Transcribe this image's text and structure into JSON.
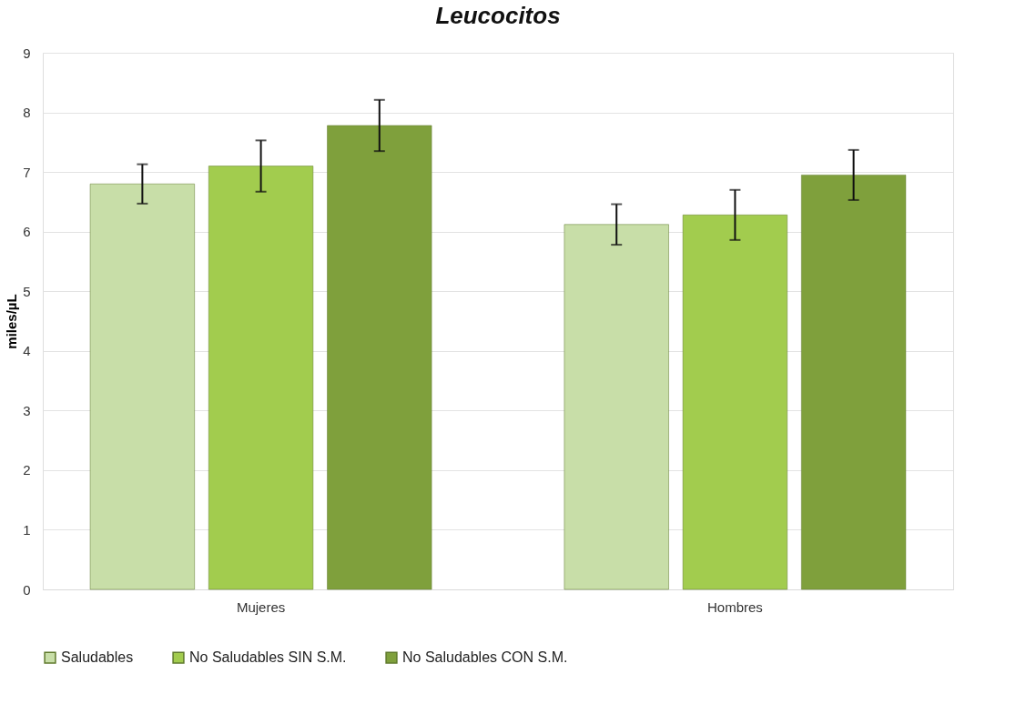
{
  "chart_data": {
    "type": "bar",
    "title": "Leucocitos",
    "ylabel": "miles/µL",
    "categories": [
      "Mujeres",
      "Hombres"
    ],
    "series": [
      {
        "name": "Saludables",
        "color": "#c8dea8",
        "values": [
          6.8,
          6.12
        ],
        "errors": [
          0.33,
          0.34
        ]
      },
      {
        "name": "No Saludables SIN S.M.",
        "color": "#a2cc4e",
        "values": [
          7.1,
          6.28
        ],
        "errors": [
          0.43,
          0.42
        ]
      },
      {
        "name": "No Saludables CON S.M.",
        "color": "#7fa03c",
        "values": [
          7.78,
          6.95
        ],
        "errors": [
          0.43,
          0.42
        ]
      }
    ],
    "ylim": [
      0,
      9
    ],
    "yticks": [
      0,
      1,
      2,
      3,
      4,
      5,
      6,
      7,
      8,
      9
    ],
    "grid": "y",
    "legend": "bottom"
  }
}
